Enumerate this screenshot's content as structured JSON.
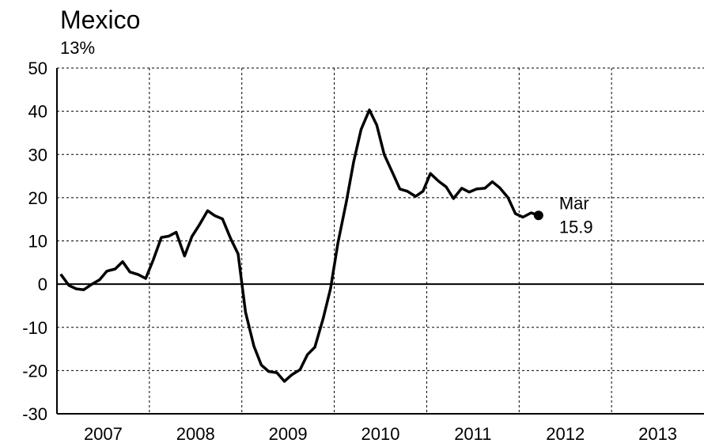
{
  "chart_data": {
    "type": "line",
    "title": "Mexico",
    "subtitle": "13%",
    "x": [
      2007.04,
      2007.13,
      2007.21,
      2007.29,
      2007.38,
      2007.46,
      2007.54,
      2007.63,
      2007.71,
      2007.79,
      2007.88,
      2007.96,
      2008.04,
      2008.13,
      2008.21,
      2008.29,
      2008.38,
      2008.46,
      2008.54,
      2008.63,
      2008.71,
      2008.79,
      2008.88,
      2008.96,
      2009.04,
      2009.13,
      2009.21,
      2009.29,
      2009.38,
      2009.46,
      2009.54,
      2009.63,
      2009.71,
      2009.79,
      2009.88,
      2009.96,
      2010.04,
      2010.13,
      2010.21,
      2010.29,
      2010.38,
      2010.46,
      2010.54,
      2010.63,
      2010.71,
      2010.79,
      2010.88,
      2010.96,
      2011.04,
      2011.13,
      2011.21,
      2011.29,
      2011.38,
      2011.46,
      2011.54,
      2011.63,
      2011.71,
      2011.79,
      2011.88,
      2011.96,
      2012.04,
      2012.13,
      2012.21
    ],
    "values": [
      2.3,
      -0.3,
      -1.1,
      -1.3,
      0,
      1,
      3,
      3.5,
      5.2,
      2.8,
      2.2,
      1.3,
      5.5,
      10.8,
      11.1,
      12,
      6.5,
      11,
      13.7,
      17,
      15.8,
      15.1,
      10.5,
      7,
      -6.5,
      -14.3,
      -18.7,
      -20.2,
      -20.5,
      -22.5,
      -21,
      -19.8,
      -16.3,
      -14.6,
      -8,
      -1,
      9.5,
      19,
      28.3,
      35.8,
      40.3,
      36.8,
      30,
      25.8,
      22,
      21.5,
      20.3,
      21.5,
      25.6,
      23.8,
      22.5,
      19.8,
      22.2,
      21.3,
      22,
      22.2,
      23.7,
      22.3,
      20,
      16.3,
      15.5,
      16.5,
      15.9
    ],
    "color": "#000000",
    "end_label": "Mar",
    "xlim": [
      2007,
      2014
    ],
    "x_grid": [
      2008,
      2009,
      2010,
      2011,
      2012,
      2013
    ],
    "xticks": [
      {
        "value": 2007.5,
        "label": "2007"
      },
      {
        "value": 2008.5,
        "label": "2008"
      },
      {
        "value": 2009.5,
        "label": "2009"
      },
      {
        "value": 2010.5,
        "label": "2010"
      },
      {
        "value": 2011.5,
        "label": "2011"
      },
      {
        "value": 2012.5,
        "label": "2012"
      },
      {
        "value": 2013.5,
        "label": "2013"
      }
    ],
    "ylim": [
      -30,
      50
    ],
    "yticks": [
      -30,
      -20,
      -10,
      0,
      10,
      20,
      30,
      40,
      50
    ],
    "grid": true
  }
}
